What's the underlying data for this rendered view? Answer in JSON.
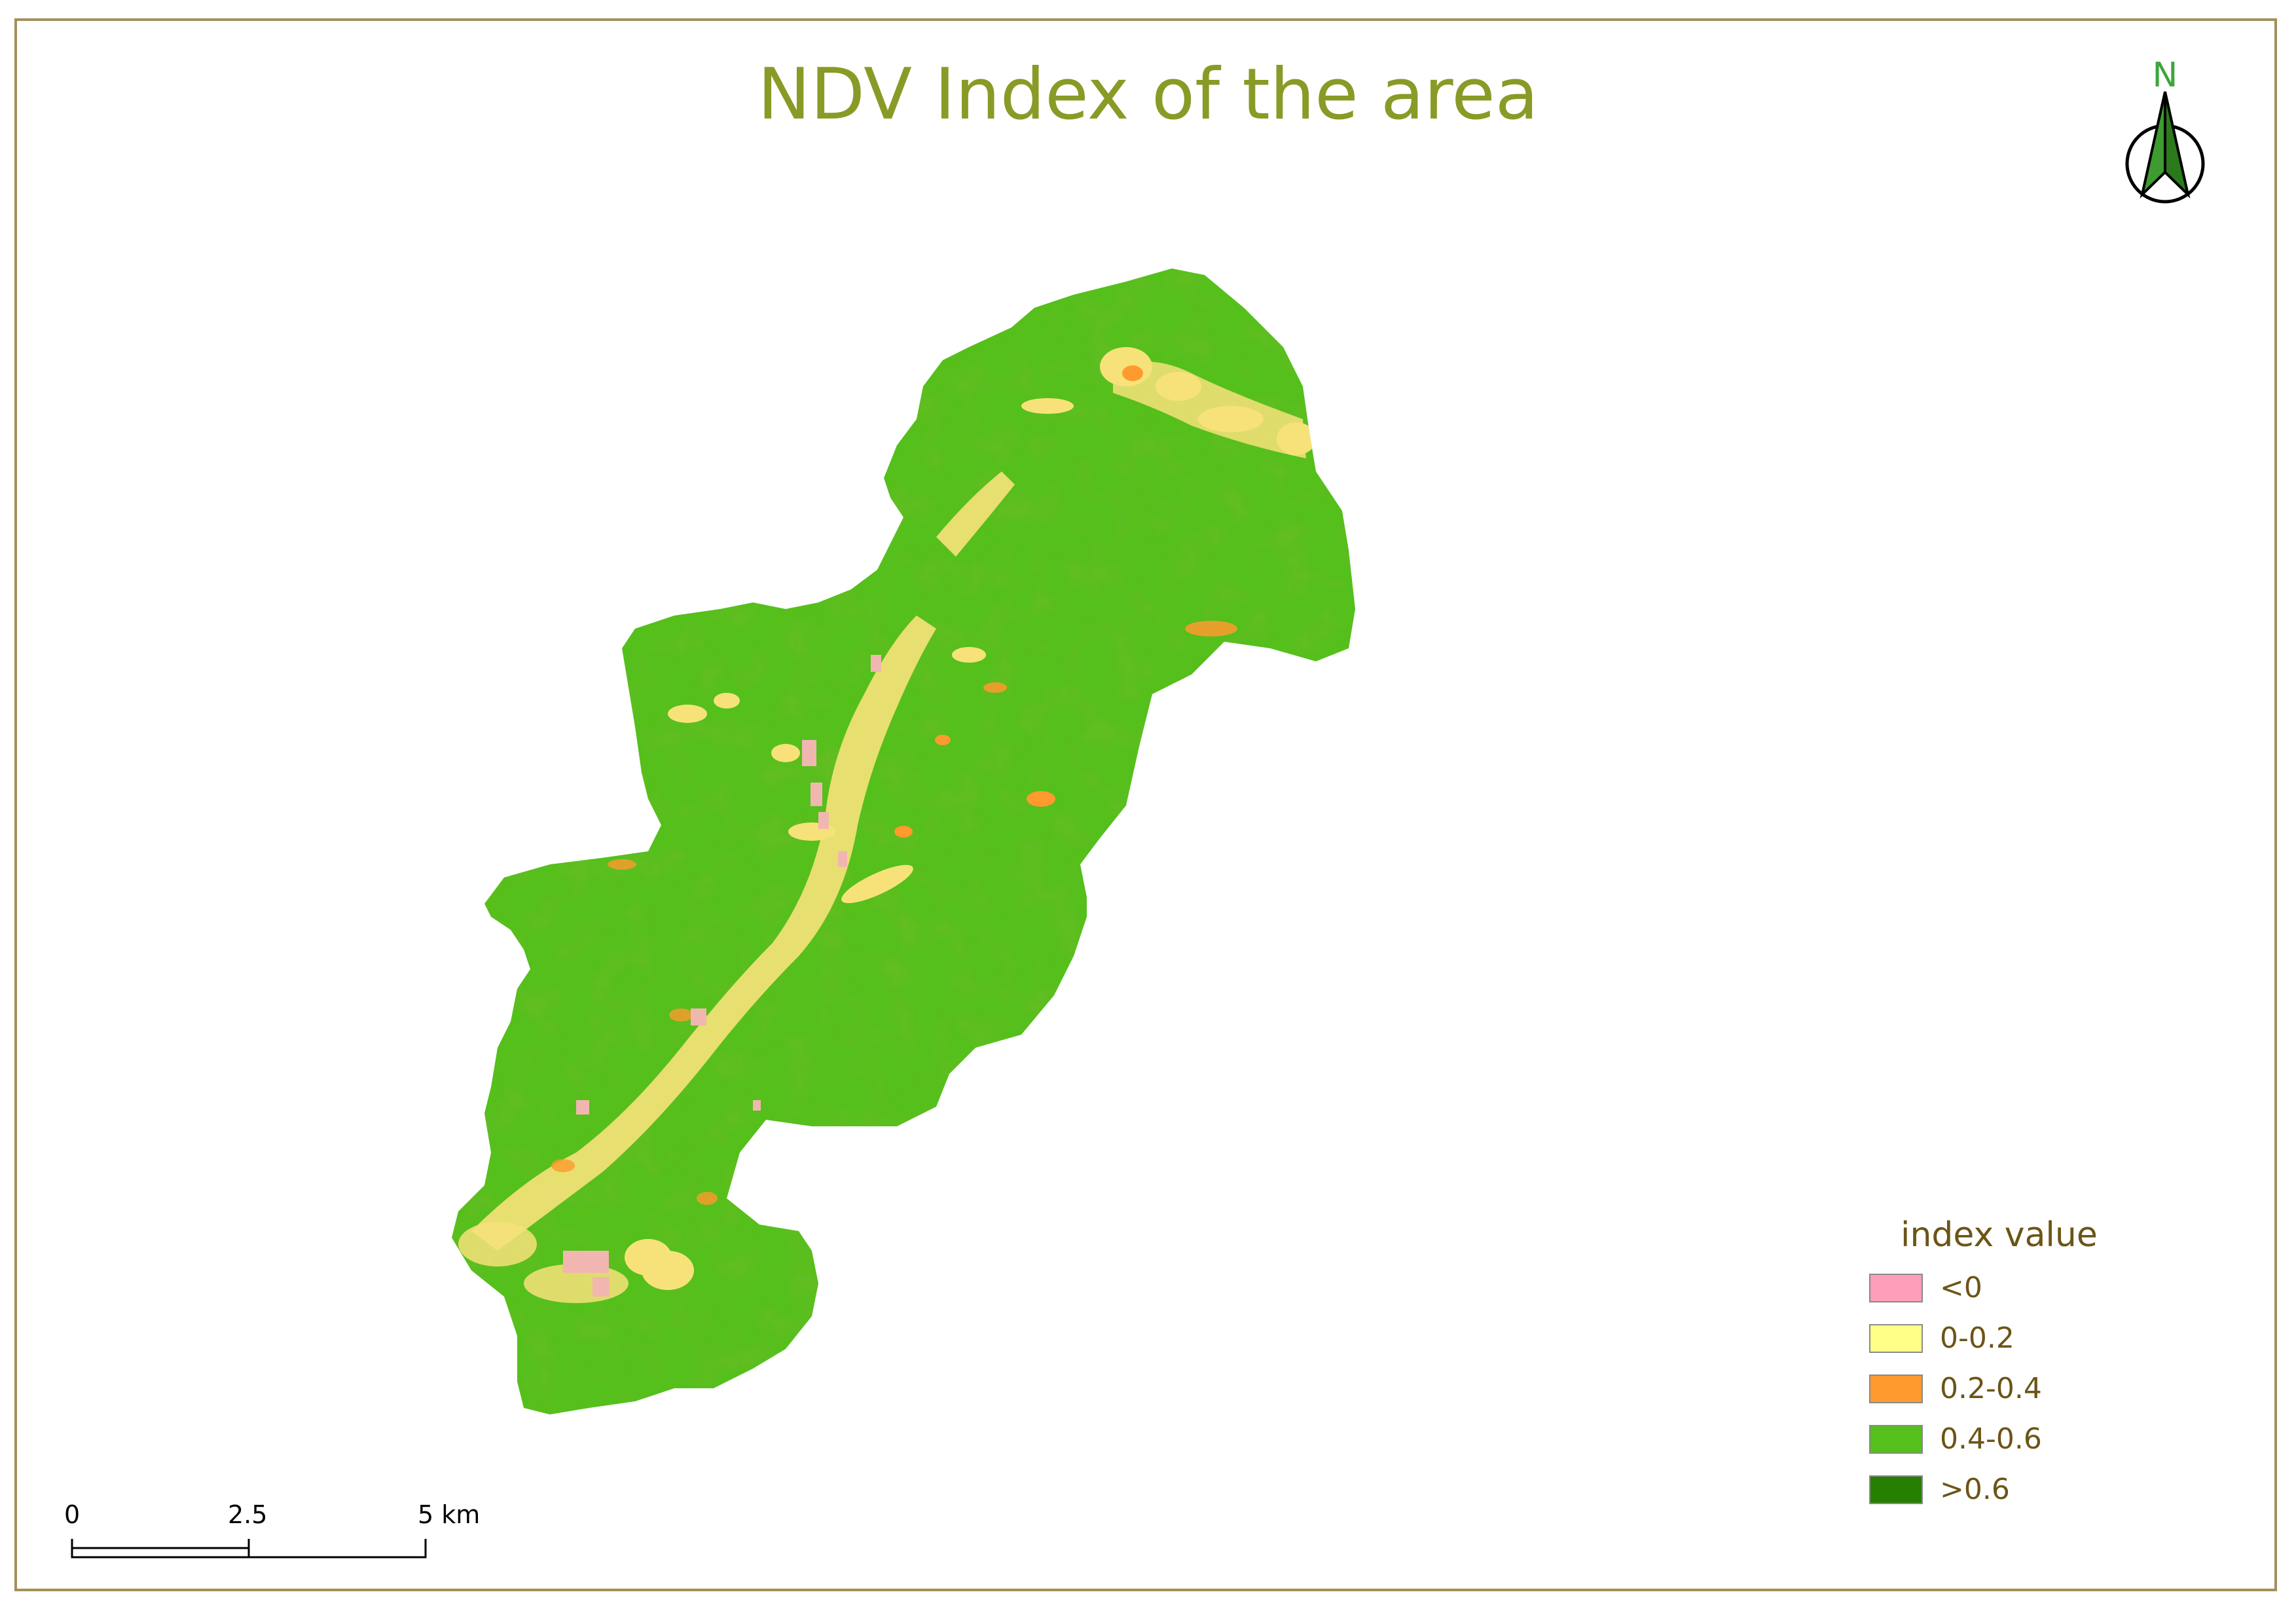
{
  "map": {
    "title": "NDV Index of the area",
    "north_label": "N",
    "legend": {
      "title": "index value",
      "items": [
        {
          "label": "<0",
          "color": "#ff9ebb"
        },
        {
          "label": "0-0.2",
          "color": "#ffff88"
        },
        {
          "label": "0.2-0.4",
          "color": "#ff9a2e"
        },
        {
          "label": "0.4-0.6",
          "color": "#55bf1c"
        },
        {
          "label": ">0.6",
          "color": "#267f00"
        }
      ]
    },
    "scalebar": {
      "labels": [
        "0",
        "2.5",
        "5 km"
      ]
    },
    "colors": {
      "title": "#8a9a26",
      "frame": "#a38f5b",
      "vegetation": "#55bf1c",
      "vegetation_dense": "#3f9e15",
      "north_arrow_left": "#3d9b2f",
      "north_arrow_right": "#2a7a1c"
    }
  }
}
